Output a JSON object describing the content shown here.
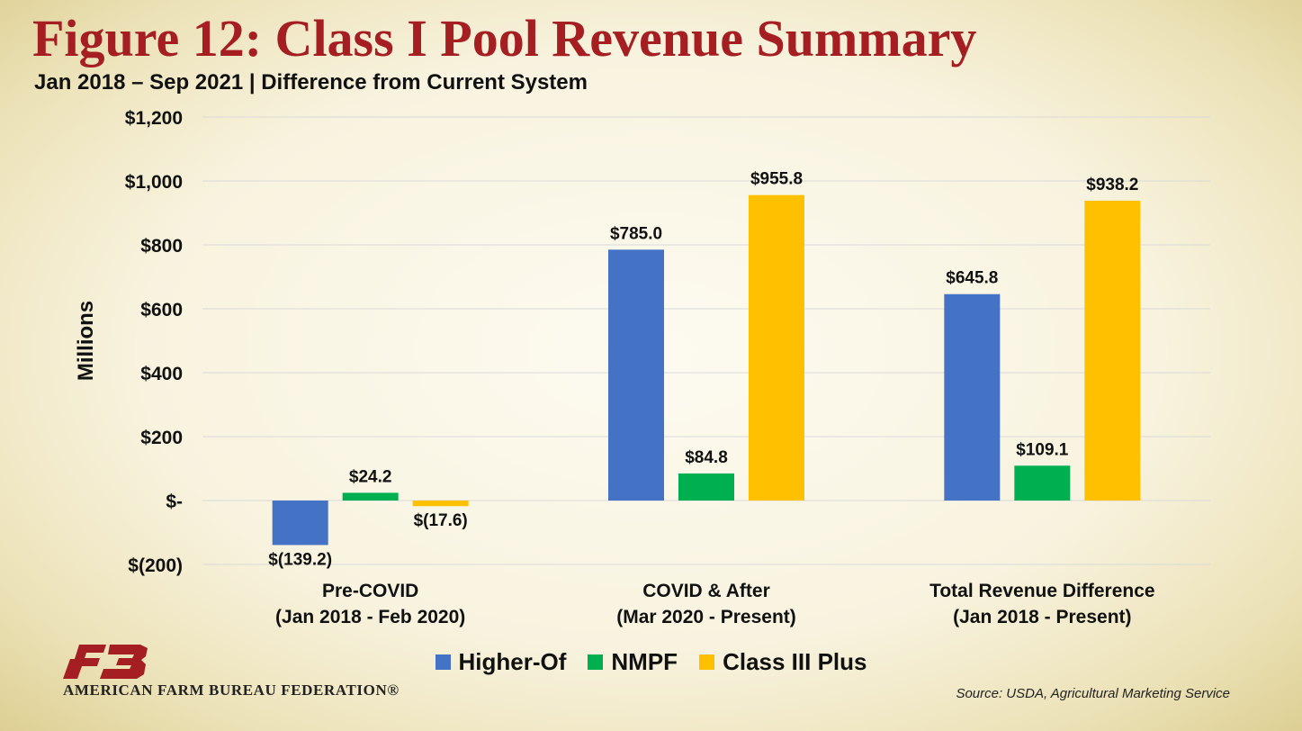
{
  "title": "Figure 12: Class I Pool Revenue Summary",
  "subtitle": "Jan 2018 – Sep 2021 | Difference from Current System",
  "chart_data": {
    "type": "bar",
    "ylabel": "Millions",
    "ylim": [
      -200,
      1200
    ],
    "yticks": [
      {
        "value": 1200,
        "label": "$1,200"
      },
      {
        "value": 1000,
        "label": "$1,000"
      },
      {
        "value": 800,
        "label": "$800"
      },
      {
        "value": 600,
        "label": "$600"
      },
      {
        "value": 400,
        "label": "$400"
      },
      {
        "value": 200,
        "label": "$200"
      },
      {
        "value": 0,
        "label": "$-"
      },
      {
        "value": -200,
        "label": "$(200)"
      }
    ],
    "grid": true,
    "legend_position": "bottom",
    "categories": [
      [
        "Pre-COVID",
        "(Jan 2018 - Feb 2020)"
      ],
      [
        "COVID & After",
        "(Mar 2020 - Present)"
      ],
      [
        "Total Revenue Difference",
        "(Jan 2018 - Present)"
      ]
    ],
    "series": [
      {
        "name": "Higher-Of",
        "color": "#4472c4",
        "values": [
          -139.2,
          785.0,
          645.8
        ],
        "labels": [
          "$(139.2)",
          "$785.0",
          "$645.8"
        ]
      },
      {
        "name": "NMPF",
        "color": "#00b050",
        "values": [
          24.2,
          84.8,
          109.1
        ],
        "labels": [
          "$24.2",
          "$84.8",
          "$109.1"
        ]
      },
      {
        "name": "Class III Plus",
        "color": "#ffc000",
        "values": [
          -17.6,
          955.8,
          938.2
        ],
        "labels": [
          "$(17.6)",
          "$955.8",
          "$938.2"
        ]
      }
    ]
  },
  "logo": {
    "icon": "fb-logo-icon",
    "text": "FB",
    "color": "#a51e22"
  },
  "footer": {
    "organization": "AMERICAN FARM BUREAU FEDERATION®",
    "source": "Source: USDA, Agricultural Marketing Service"
  }
}
